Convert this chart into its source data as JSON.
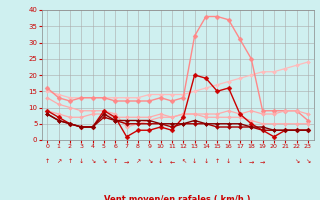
{
  "title": "",
  "xlabel": "Vent moyen/en rafales ( km/h )",
  "background_color": "#cff0f0",
  "grid_color": "#aaaaaa",
  "xlim": [
    -0.5,
    23.5
  ],
  "ylim": [
    0,
    40
  ],
  "yticks": [
    0,
    5,
    10,
    15,
    20,
    25,
    30,
    35,
    40
  ],
  "xticks": [
    0,
    1,
    2,
    3,
    4,
    5,
    6,
    7,
    8,
    9,
    10,
    11,
    12,
    13,
    14,
    15,
    16,
    17,
    18,
    19,
    20,
    21,
    22,
    23
  ],
  "series": [
    {
      "comment": "dark red spiky - main wind speed",
      "x": [
        0,
        1,
        2,
        3,
        4,
        5,
        6,
        7,
        8,
        9,
        10,
        11,
        12,
        13,
        14,
        15,
        16,
        17,
        18,
        19,
        20,
        21,
        22,
        23
      ],
      "y": [
        9,
        7,
        5,
        4,
        4,
        9,
        7,
        1,
        3,
        3,
        4,
        3,
        7,
        20,
        19,
        15,
        16,
        8,
        5,
        3,
        1,
        3,
        3,
        3
      ],
      "color": "#cc0000",
      "linewidth": 1.0,
      "markersize": 2.5,
      "marker": "D",
      "zorder": 6
    },
    {
      "comment": "pink spiky large peak around 14-15",
      "x": [
        0,
        1,
        2,
        3,
        4,
        5,
        6,
        7,
        8,
        9,
        10,
        11,
        12,
        13,
        14,
        15,
        16,
        17,
        18,
        19,
        20,
        21,
        22,
        23
      ],
      "y": [
        16,
        13,
        12,
        13,
        13,
        13,
        12,
        12,
        12,
        12,
        13,
        12,
        13,
        32,
        38,
        38,
        37,
        31,
        25,
        9,
        9,
        9,
        9,
        6
      ],
      "color": "#ff8888",
      "linewidth": 1.0,
      "markersize": 2.5,
      "marker": "D",
      "zorder": 4
    },
    {
      "comment": "light pink rising line",
      "x": [
        0,
        1,
        2,
        3,
        4,
        5,
        6,
        7,
        8,
        9,
        10,
        11,
        12,
        13,
        14,
        15,
        16,
        17,
        18,
        19,
        20,
        21,
        22,
        23
      ],
      "y": [
        15,
        14,
        13,
        13,
        13,
        13,
        13,
        13,
        13,
        14,
        14,
        14,
        14,
        15,
        16,
        17,
        18,
        19,
        20,
        21,
        21,
        22,
        23,
        24
      ],
      "color": "#ffbbbb",
      "linewidth": 0.9,
      "markersize": 2.0,
      "marker": "D",
      "zorder": 3
    },
    {
      "comment": "dark red flat low line",
      "x": [
        0,
        1,
        2,
        3,
        4,
        5,
        6,
        7,
        8,
        9,
        10,
        11,
        12,
        13,
        14,
        15,
        16,
        17,
        18,
        19,
        20,
        21,
        22,
        23
      ],
      "y": [
        8,
        6,
        5,
        4,
        4,
        7,
        6,
        5,
        5,
        5,
        5,
        4,
        5,
        5,
        5,
        4,
        4,
        4,
        4,
        3,
        3,
        3,
        3,
        3
      ],
      "color": "#aa0000",
      "linewidth": 1.0,
      "markersize": 2.0,
      "marker": "D",
      "zorder": 6
    },
    {
      "comment": "medium pink wavy",
      "x": [
        0,
        1,
        2,
        3,
        4,
        5,
        6,
        7,
        8,
        9,
        10,
        11,
        12,
        13,
        14,
        15,
        16,
        17,
        18,
        19,
        20,
        21,
        22,
        23
      ],
      "y": [
        9,
        8,
        7,
        7,
        8,
        8,
        7,
        7,
        7,
        7,
        8,
        7,
        8,
        8,
        8,
        8,
        9,
        8,
        9,
        8,
        8,
        9,
        9,
        8
      ],
      "color": "#ffaaaa",
      "linewidth": 0.9,
      "markersize": 2.0,
      "marker": "D",
      "zorder": 4
    },
    {
      "comment": "very dark red bottom flat",
      "x": [
        0,
        1,
        2,
        3,
        4,
        5,
        6,
        7,
        8,
        9,
        10,
        11,
        12,
        13,
        14,
        15,
        16,
        17,
        18,
        19,
        20,
        21,
        22,
        23
      ],
      "y": [
        8,
        6,
        5,
        4,
        4,
        8,
        6,
        6,
        6,
        6,
        5,
        5,
        5,
        6,
        5,
        5,
        5,
        5,
        4,
        4,
        3,
        3,
        3,
        3
      ],
      "color": "#880000",
      "linewidth": 1.0,
      "markersize": 2.0,
      "marker": "D",
      "zorder": 7
    },
    {
      "comment": "pink dipping around 7-8",
      "x": [
        0,
        1,
        2,
        3,
        4,
        5,
        6,
        7,
        8,
        9,
        10,
        11,
        12,
        13,
        14,
        15,
        16,
        17,
        18,
        19,
        20,
        21,
        22,
        23
      ],
      "y": [
        13,
        11,
        10,
        9,
        9,
        9,
        8,
        4,
        5,
        6,
        7,
        7,
        8,
        8,
        7,
        7,
        7,
        7,
        6,
        5,
        5,
        5,
        5,
        5
      ],
      "color": "#ffaaaa",
      "linewidth": 0.9,
      "markersize": 2.0,
      "marker": "D",
      "zorder": 4
    }
  ],
  "wind_arrows": [
    {
      "x": 0,
      "symbol": "↑"
    },
    {
      "x": 1,
      "symbol": "↗"
    },
    {
      "x": 2,
      "symbol": "↑"
    },
    {
      "x": 3,
      "symbol": "↓"
    },
    {
      "x": 4,
      "symbol": "↘"
    },
    {
      "x": 5,
      "symbol": "↘"
    },
    {
      "x": 6,
      "symbol": "↑"
    },
    {
      "x": 7,
      "symbol": "→"
    },
    {
      "x": 8,
      "symbol": "↗"
    },
    {
      "x": 9,
      "symbol": "↘"
    },
    {
      "x": 10,
      "symbol": "↓"
    },
    {
      "x": 11,
      "symbol": "←"
    },
    {
      "x": 12,
      "symbol": "↖"
    },
    {
      "x": 13,
      "symbol": "↓"
    },
    {
      "x": 14,
      "symbol": "↓"
    },
    {
      "x": 15,
      "symbol": "↑"
    },
    {
      "x": 16,
      "symbol": "↓"
    },
    {
      "x": 17,
      "symbol": "↓"
    },
    {
      "x": 18,
      "symbol": "→"
    },
    {
      "x": 19,
      "symbol": "→"
    },
    {
      "x": 20,
      "symbol": " "
    },
    {
      "x": 21,
      "symbol": " "
    },
    {
      "x": 22,
      "symbol": "↘"
    },
    {
      "x": 23,
      "symbol": "↘"
    }
  ]
}
